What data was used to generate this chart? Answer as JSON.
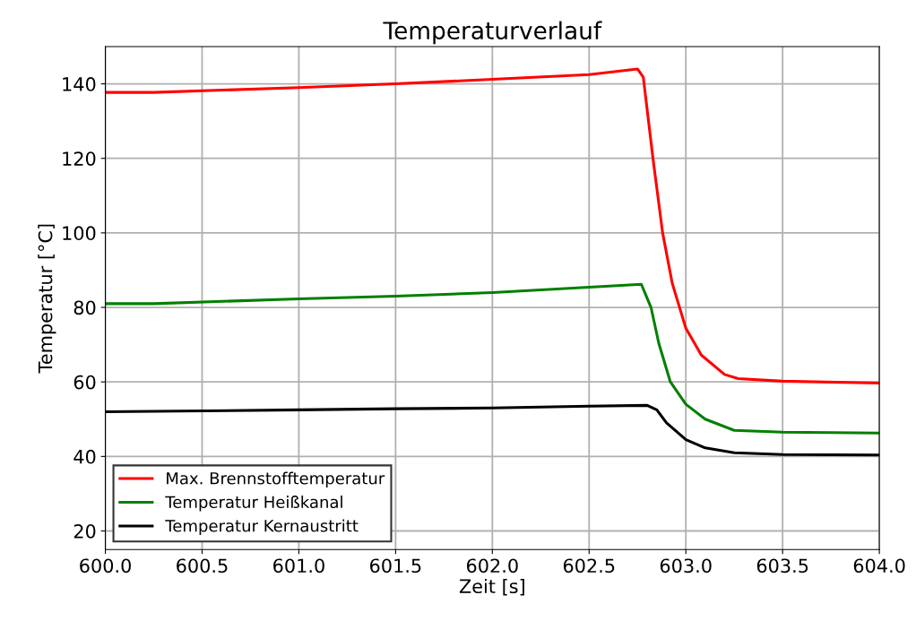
{
  "chart_data": {
    "type": "line",
    "title": "Temperaturverlauf",
    "xlabel": "Zeit [s]",
    "ylabel": "Temperatur [°C]",
    "xlim": [
      600,
      604
    ],
    "ylim": [
      15,
      150
    ],
    "xticks": [
      {
        "value": 600,
        "label": "600.0"
      },
      {
        "value": 600.5,
        "label": "600.5"
      },
      {
        "value": 601,
        "label": "601.0"
      },
      {
        "value": 601.5,
        "label": "601.5"
      },
      {
        "value": 602,
        "label": "602.0"
      },
      {
        "value": 602.5,
        "label": "602.5"
      },
      {
        "value": 603,
        "label": "603.0"
      },
      {
        "value": 603.5,
        "label": "603.5"
      },
      {
        "value": 604,
        "label": "604.0"
      }
    ],
    "yticks": [
      20,
      40,
      60,
      80,
      100,
      120,
      140
    ],
    "grid": true,
    "legend": "bottom left",
    "marker": "none",
    "line_style": "solid",
    "series": [
      {
        "name": "Max. Brennstofftemperatur",
        "color": "#ff0000",
        "x": [
          600,
          600.25,
          601,
          601.5,
          602,
          602.5,
          602.75,
          602.78,
          602.83,
          602.88,
          602.93,
          603,
          603.08,
          603.2,
          603.27,
          603.5,
          604
        ],
        "values": [
          137.7,
          137.7,
          139,
          140,
          141.2,
          142.5,
          144,
          141.8,
          120,
          100,
          86.4,
          74.4,
          67.2,
          62,
          60.9,
          60.2,
          59.7
        ]
      },
      {
        "name": "Temperatur Heißkanal",
        "color": "#008000",
        "x": [
          600,
          600.25,
          601,
          601.5,
          602,
          602.5,
          602.77,
          602.82,
          602.86,
          602.92,
          603,
          603.1,
          603.25,
          603.5,
          604
        ],
        "values": [
          81,
          81,
          82.3,
          83,
          84,
          85.4,
          86.2,
          80,
          70.4,
          60,
          54,
          50,
          47,
          46.5,
          46.3
        ]
      },
      {
        "name": "Temperatur Kernaustritt",
        "color": "#000000",
        "x": [
          600,
          600.25,
          601,
          601.5,
          602,
          602.5,
          602.8,
          602.85,
          602.9,
          603,
          603.1,
          603.25,
          603.5,
          604
        ],
        "values": [
          52,
          52.1,
          52.5,
          52.8,
          53,
          53.5,
          53.7,
          52.5,
          49,
          44.5,
          42.3,
          41,
          40.5,
          40.4
        ]
      }
    ]
  }
}
